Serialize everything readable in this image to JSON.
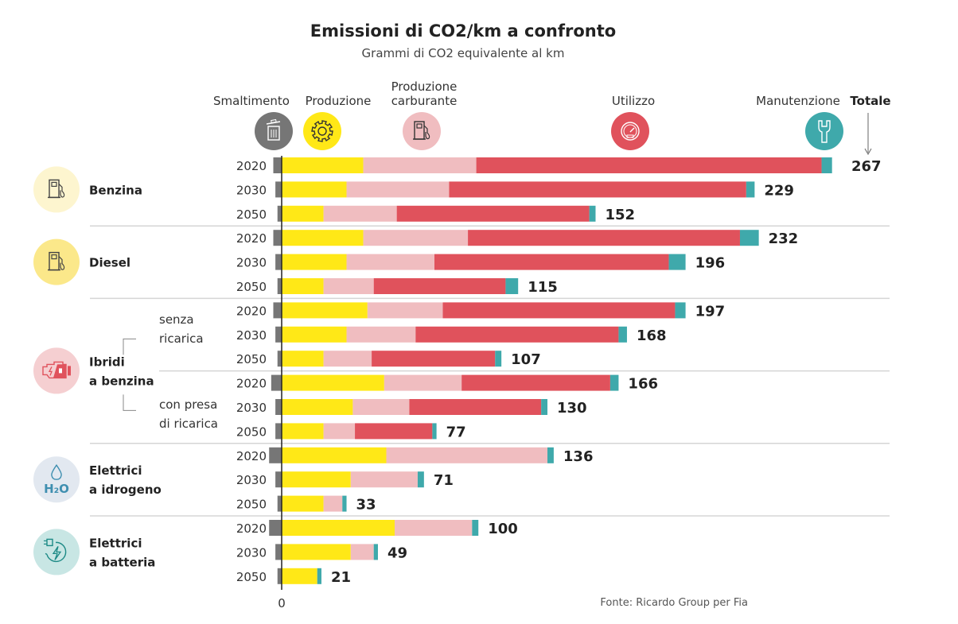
{
  "chart_data": {
    "type": "bar",
    "orientation": "horizontal",
    "stacked": true,
    "title": "Emissioni di CO2/km a confronto",
    "subtitle": "Grammi di CO2 equivalente al km",
    "xlabel": "",
    "ylabel": "",
    "zero_label": "0",
    "grid": false,
    "legend_position": "top",
    "source": "Fonte: Ricardo Group per Fia",
    "total_label": "Totale",
    "segments": [
      {
        "key": "smaltimento",
        "name": "Smaltimento",
        "color": "#767676",
        "icon": "trash-icon",
        "icon_bg": "#767676"
      },
      {
        "key": "produzione",
        "name": "Produzione",
        "color": "#ffe817",
        "icon": "gear-icon",
        "icon_bg": "#ffe817"
      },
      {
        "key": "carburante",
        "name": "Produzione carburante",
        "name_lines": [
          "Produzione",
          "carburante"
        ],
        "color": "#f0bdc0",
        "icon": "fuel-pump-icon",
        "icon_bg": "#f0bdc0"
      },
      {
        "key": "utilizzo",
        "name": "Utilizzo",
        "color": "#e0525c",
        "icon": "speedometer-icon",
        "icon_bg": "#e0525c"
      },
      {
        "key": "manutenzione",
        "name": "Manutenzione",
        "color": "#3fa9ab",
        "icon": "wrench-icon",
        "icon_bg": "#3fa9ab"
      }
    ],
    "groups": [
      {
        "name": "Benzina",
        "name_lines": [
          "Benzina"
        ],
        "icon": "fuel-pump-icon",
        "icon_bg": "#fdf5cf",
        "rows": [
          {
            "year": "2020",
            "smaltimento": 4,
            "produzione": 39,
            "carburante": 54,
            "utilizzo": 165,
            "manutenzione": 5,
            "total": 267
          },
          {
            "year": "2030",
            "smaltimento": 3,
            "produzione": 31,
            "carburante": 49,
            "utilizzo": 142,
            "manutenzione": 4,
            "total": 229
          },
          {
            "year": "2050",
            "smaltimento": 2,
            "produzione": 20,
            "carburante": 35,
            "utilizzo": 92,
            "manutenzione": 3,
            "total": 152
          }
        ]
      },
      {
        "name": "Diesel",
        "name_lines": [
          "Diesel"
        ],
        "icon": "fuel-pump-icon",
        "icon_bg": "#fbe88a",
        "rows": [
          {
            "year": "2020",
            "smaltimento": 4,
            "produzione": 39,
            "carburante": 50,
            "utilizzo": 130,
            "manutenzione": 9,
            "total": 232
          },
          {
            "year": "2030",
            "smaltimento": 3,
            "produzione": 31,
            "carburante": 42,
            "utilizzo": 112,
            "manutenzione": 8,
            "total": 196
          },
          {
            "year": "2050",
            "smaltimento": 2,
            "produzione": 20,
            "carburante": 24,
            "utilizzo": 63,
            "manutenzione": 6,
            "total": 115
          }
        ]
      },
      {
        "name": "Ibridi a benzina",
        "name_lines": [
          "Ibridi",
          "a benzina"
        ],
        "icon": "hybrid-engine-icon",
        "icon_bg": "#f5cfd1",
        "subgroups": [
          {
            "name": "senza ricarica",
            "name_lines": [
              "senza",
              "ricarica"
            ]
          },
          {
            "name": "con presa di ricarica",
            "name_lines": [
              "con presa",
              "di ricarica"
            ]
          }
        ],
        "rows": [
          {
            "subgroup": "senza ricarica",
            "year": "2020",
            "smaltimento": 4,
            "produzione": 41,
            "carburante": 36,
            "utilizzo": 111,
            "manutenzione": 5,
            "total": 197
          },
          {
            "subgroup": "senza ricarica",
            "year": "2030",
            "smaltimento": 3,
            "produzione": 31,
            "carburante": 33,
            "utilizzo": 97,
            "manutenzione": 4,
            "total": 168
          },
          {
            "subgroup": "senza ricarica",
            "year": "2050",
            "smaltimento": 2,
            "produzione": 20,
            "carburante": 23,
            "utilizzo": 59,
            "manutenzione": 3,
            "total": 107
          },
          {
            "subgroup": "con presa di ricarica",
            "year": "2020",
            "smaltimento": 5,
            "produzione": 49,
            "carburante": 37,
            "utilizzo": 71,
            "manutenzione": 4,
            "total": 166
          },
          {
            "subgroup": "con presa di ricarica",
            "year": "2030",
            "smaltimento": 3,
            "produzione": 34,
            "carburante": 27,
            "utilizzo": 63,
            "manutenzione": 3,
            "total": 130
          },
          {
            "subgroup": "con presa di ricarica",
            "year": "2050",
            "smaltimento": 3,
            "produzione": 20,
            "carburante": 15,
            "utilizzo": 37,
            "manutenzione": 2,
            "total": 77
          }
        ]
      },
      {
        "name": "Elettrici a idrogeno",
        "name_lines": [
          "Elettrici",
          "a idrogeno"
        ],
        "icon": "water-drop-h2o-icon",
        "icon_bg": "#e2e8f0",
        "rows": [
          {
            "year": "2020",
            "smaltimento": 6,
            "produzione": 50,
            "carburante": 77,
            "utilizzo": 0,
            "manutenzione": 3,
            "total": 136
          },
          {
            "year": "2030",
            "smaltimento": 3,
            "produzione": 33,
            "carburante": 32,
            "utilizzo": 0,
            "manutenzione": 3,
            "total": 71
          },
          {
            "year": "2050",
            "smaltimento": 2,
            "produzione": 20,
            "carburante": 9,
            "utilizzo": 0,
            "manutenzione": 2,
            "total": 33
          }
        ]
      },
      {
        "name": "Elettrici a batteria",
        "name_lines": [
          "Elettrici",
          "a batteria"
        ],
        "icon": "plug-charge-icon",
        "icon_bg": "#c8e6e4",
        "rows": [
          {
            "year": "2020",
            "smaltimento": 6,
            "produzione": 54,
            "carburante": 37,
            "utilizzo": 0,
            "manutenzione": 3,
            "total": 100
          },
          {
            "year": "2030",
            "smaltimento": 3,
            "produzione": 33,
            "carburante": 11,
            "utilizzo": 0,
            "manutenzione": 2,
            "total": 49
          },
          {
            "year": "2050",
            "smaltimento": 2,
            "produzione": 17,
            "carburante": 0,
            "utilizzo": 0,
            "manutenzione": 2,
            "total": 21
          }
        ]
      }
    ]
  }
}
